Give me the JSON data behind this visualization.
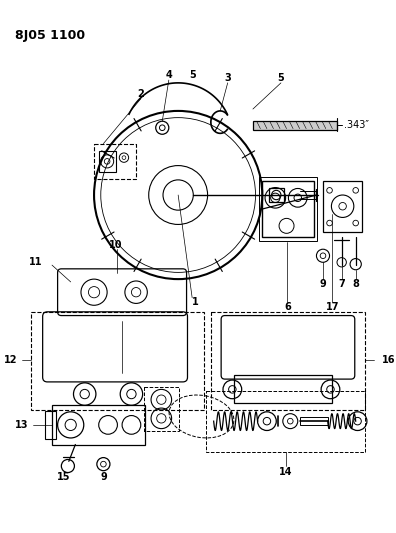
{
  "title": "8J05 1100",
  "bg_color": "#ffffff",
  "line_color": "#000000",
  "fig_width": 3.96,
  "fig_height": 5.33,
  "dpi": 100,
  "dimension_label": ".343″"
}
